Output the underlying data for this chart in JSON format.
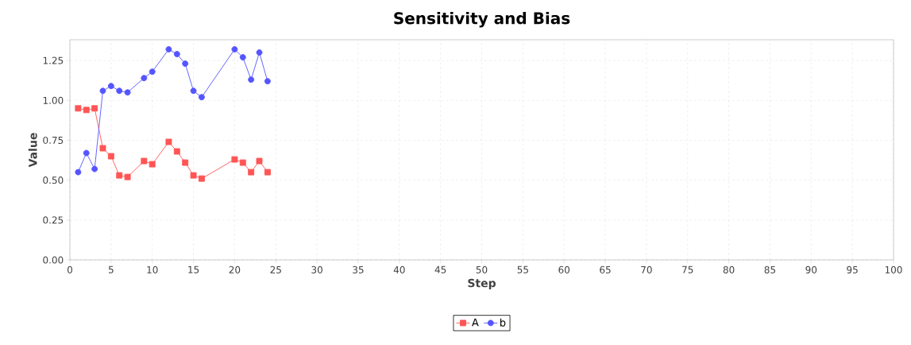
{
  "chart_data": {
    "type": "line",
    "title": "Sensitivity and Bias",
    "xlabel": "Step",
    "ylabel": "Value",
    "x": [
      1,
      2,
      3,
      4,
      5,
      6,
      7,
      9,
      10,
      12,
      13,
      14,
      15,
      16,
      20,
      21,
      22,
      23,
      24
    ],
    "series": [
      {
        "name": "A",
        "color": "#ff5555",
        "marker": "square",
        "values": [
          0.95,
          0.94,
          0.95,
          0.7,
          0.65,
          0.53,
          0.52,
          0.62,
          0.6,
          0.74,
          0.68,
          0.61,
          0.53,
          0.51,
          0.63,
          0.61,
          0.55,
          0.62,
          0.55
        ]
      },
      {
        "name": "b",
        "color": "#5555ff",
        "marker": "circle",
        "values": [
          0.55,
          0.67,
          0.57,
          1.06,
          1.09,
          1.06,
          1.05,
          1.14,
          1.18,
          1.32,
          1.29,
          1.23,
          1.06,
          1.02,
          1.32,
          1.27,
          1.13,
          1.3,
          1.12
        ]
      }
    ],
    "xlim": [
      0,
      100
    ],
    "xticks": [
      0,
      5,
      10,
      15,
      20,
      25,
      30,
      35,
      40,
      45,
      50,
      55,
      60,
      65,
      70,
      75,
      80,
      85,
      90,
      95,
      100
    ],
    "ylim": [
      0,
      1.38
    ],
    "yticks": [
      {
        "value": 0,
        "label": "0.00"
      },
      0.25,
      {
        "value": 0.5,
        "label": "0.50"
      },
      0.75,
      {
        "value": 1,
        "label": "1.00"
      },
      1.25
    ],
    "grid": true,
    "legend": "bottom"
  }
}
